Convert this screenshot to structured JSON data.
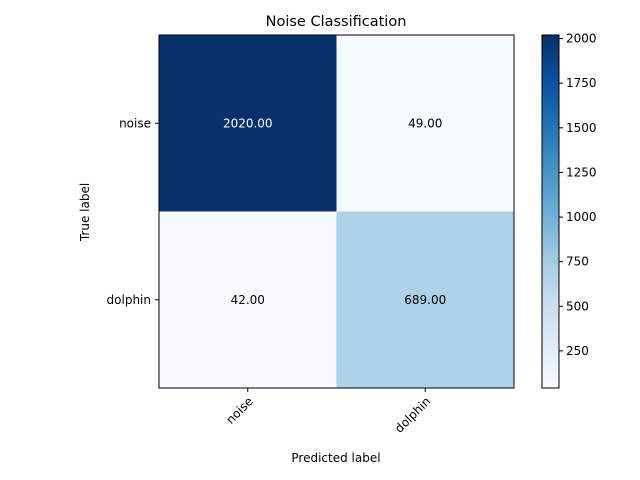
{
  "chart_data": {
    "type": "heatmap",
    "title": "Noise Classification",
    "xlabel": "Predicted label",
    "ylabel": "True label",
    "x_categories": [
      "noise",
      "dolphin"
    ],
    "y_categories": [
      "noise",
      "dolphin"
    ],
    "values": [
      [
        2020.0,
        49.0
      ],
      [
        42.0,
        689.0
      ]
    ],
    "cell_labels": [
      [
        "2020.00",
        "49.00"
      ],
      [
        "42.00",
        "689.00"
      ]
    ],
    "colormap": "Blues",
    "colorbar": {
      "ticks": [
        250,
        500,
        750,
        1000,
        1250,
        1500,
        1750,
        2000
      ],
      "range": [
        42,
        2020
      ]
    },
    "grid": false,
    "x_tick_rotation": "45 degrees",
    "colors": {
      "dark_cell": "#08306b",
      "light_cell": "#f7fbff",
      "mid_cell": "#abd0e6",
      "text_on_dark": "#ffffff",
      "text_on_light": "#000000"
    }
  }
}
